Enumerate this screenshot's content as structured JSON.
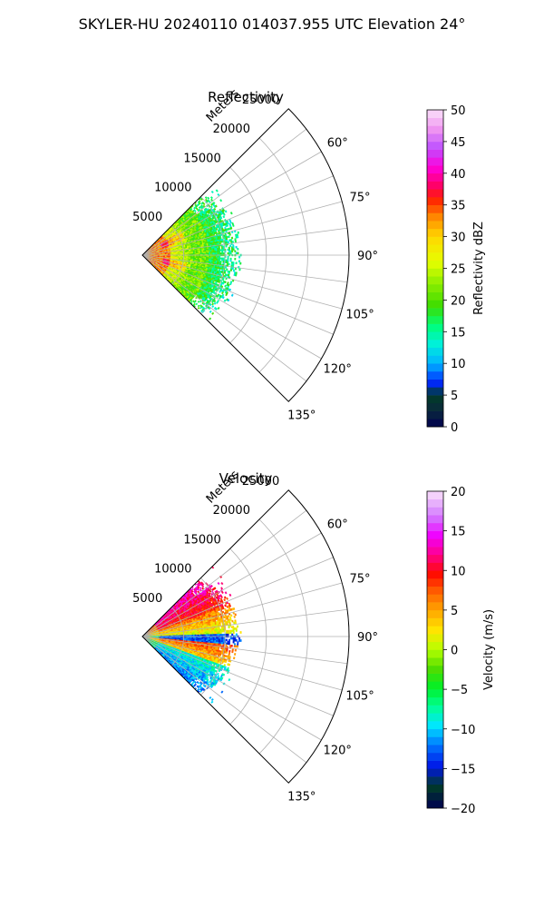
{
  "figure": {
    "suptitle": "SKYLER-HU  20240110  014037.955 UTC Elevation 24°"
  },
  "chart_data": [
    {
      "type": "polar-sector-radar",
      "title": "Reflectivity",
      "radial_label": "Meters",
      "r_ticks": [
        5000,
        10000,
        15000,
        20000,
        25000
      ],
      "r_tick_labels": [
        "5000",
        "10000",
        "15000",
        "20000",
        "25000"
      ],
      "r_lim": [
        0,
        25000
      ],
      "azimuth_range_deg": [
        45,
        135
      ],
      "azimuth_ticks_deg": [
        60,
        75,
        90,
        105,
        120,
        135
      ],
      "azimuth_tick_labels": [
        "60°",
        "75°",
        "90°",
        "105°",
        "120°",
        "135°"
      ],
      "data_extent_m": 12000,
      "grid": true,
      "field_summary": [
        {
          "range_m": [
            0,
            3500
          ],
          "value": 32
        },
        {
          "range_m": [
            3500,
            6000
          ],
          "value": 26
        },
        {
          "range_m": [
            6000,
            8000
          ],
          "value": 20
        },
        {
          "range_m": [
            8000,
            12000
          ],
          "value": 17
        }
      ],
      "colorbar": {
        "label": "Reflectivity dBZ",
        "vmin": 0,
        "vmax": 50,
        "ticks": [
          0,
          5,
          10,
          15,
          20,
          25,
          30,
          35,
          40,
          45,
          50
        ],
        "tick_labels": [
          "0",
          "5",
          "10",
          "15",
          "20",
          "25",
          "30",
          "35",
          "40",
          "45",
          "50"
        ]
      }
    },
    {
      "type": "polar-sector-radar",
      "title": "Velocity",
      "radial_label": "Meters",
      "r_ticks": [
        5000,
        10000,
        15000,
        20000,
        25000
      ],
      "r_tick_labels": [
        "5000",
        "10000",
        "15000",
        "20000",
        "25000"
      ],
      "r_lim": [
        0,
        25000
      ],
      "azimuth_range_deg": [
        45,
        135
      ],
      "azimuth_ticks_deg": [
        60,
        75,
        90,
        105,
        120,
        135
      ],
      "azimuth_tick_labels": [
        "60°",
        "75°",
        "90°",
        "105°",
        "120°",
        "135°"
      ],
      "data_extent_m": 12000,
      "grid": true,
      "field_summary": [
        {
          "azimuth_deg": [
            45,
            70
          ],
          "value": 12
        },
        {
          "azimuth_deg": [
            70,
            88
          ],
          "value": 2
        },
        {
          "azimuth_deg": [
            88,
            95
          ],
          "value": -12
        },
        {
          "azimuth_deg": [
            95,
            110
          ],
          "value": 6
        },
        {
          "azimuth_deg": [
            110,
            135
          ],
          "value": -8
        }
      ],
      "colorbar": {
        "label": "Velocity (m/s)",
        "vmin": -20,
        "vmax": 20,
        "ticks": [
          -20,
          -15,
          -10,
          -5,
          0,
          5,
          10,
          15,
          20
        ],
        "tick_labels": [
          "−20",
          "−15",
          "−10",
          "−5",
          "0",
          "5",
          "10",
          "15",
          "20"
        ]
      }
    }
  ]
}
